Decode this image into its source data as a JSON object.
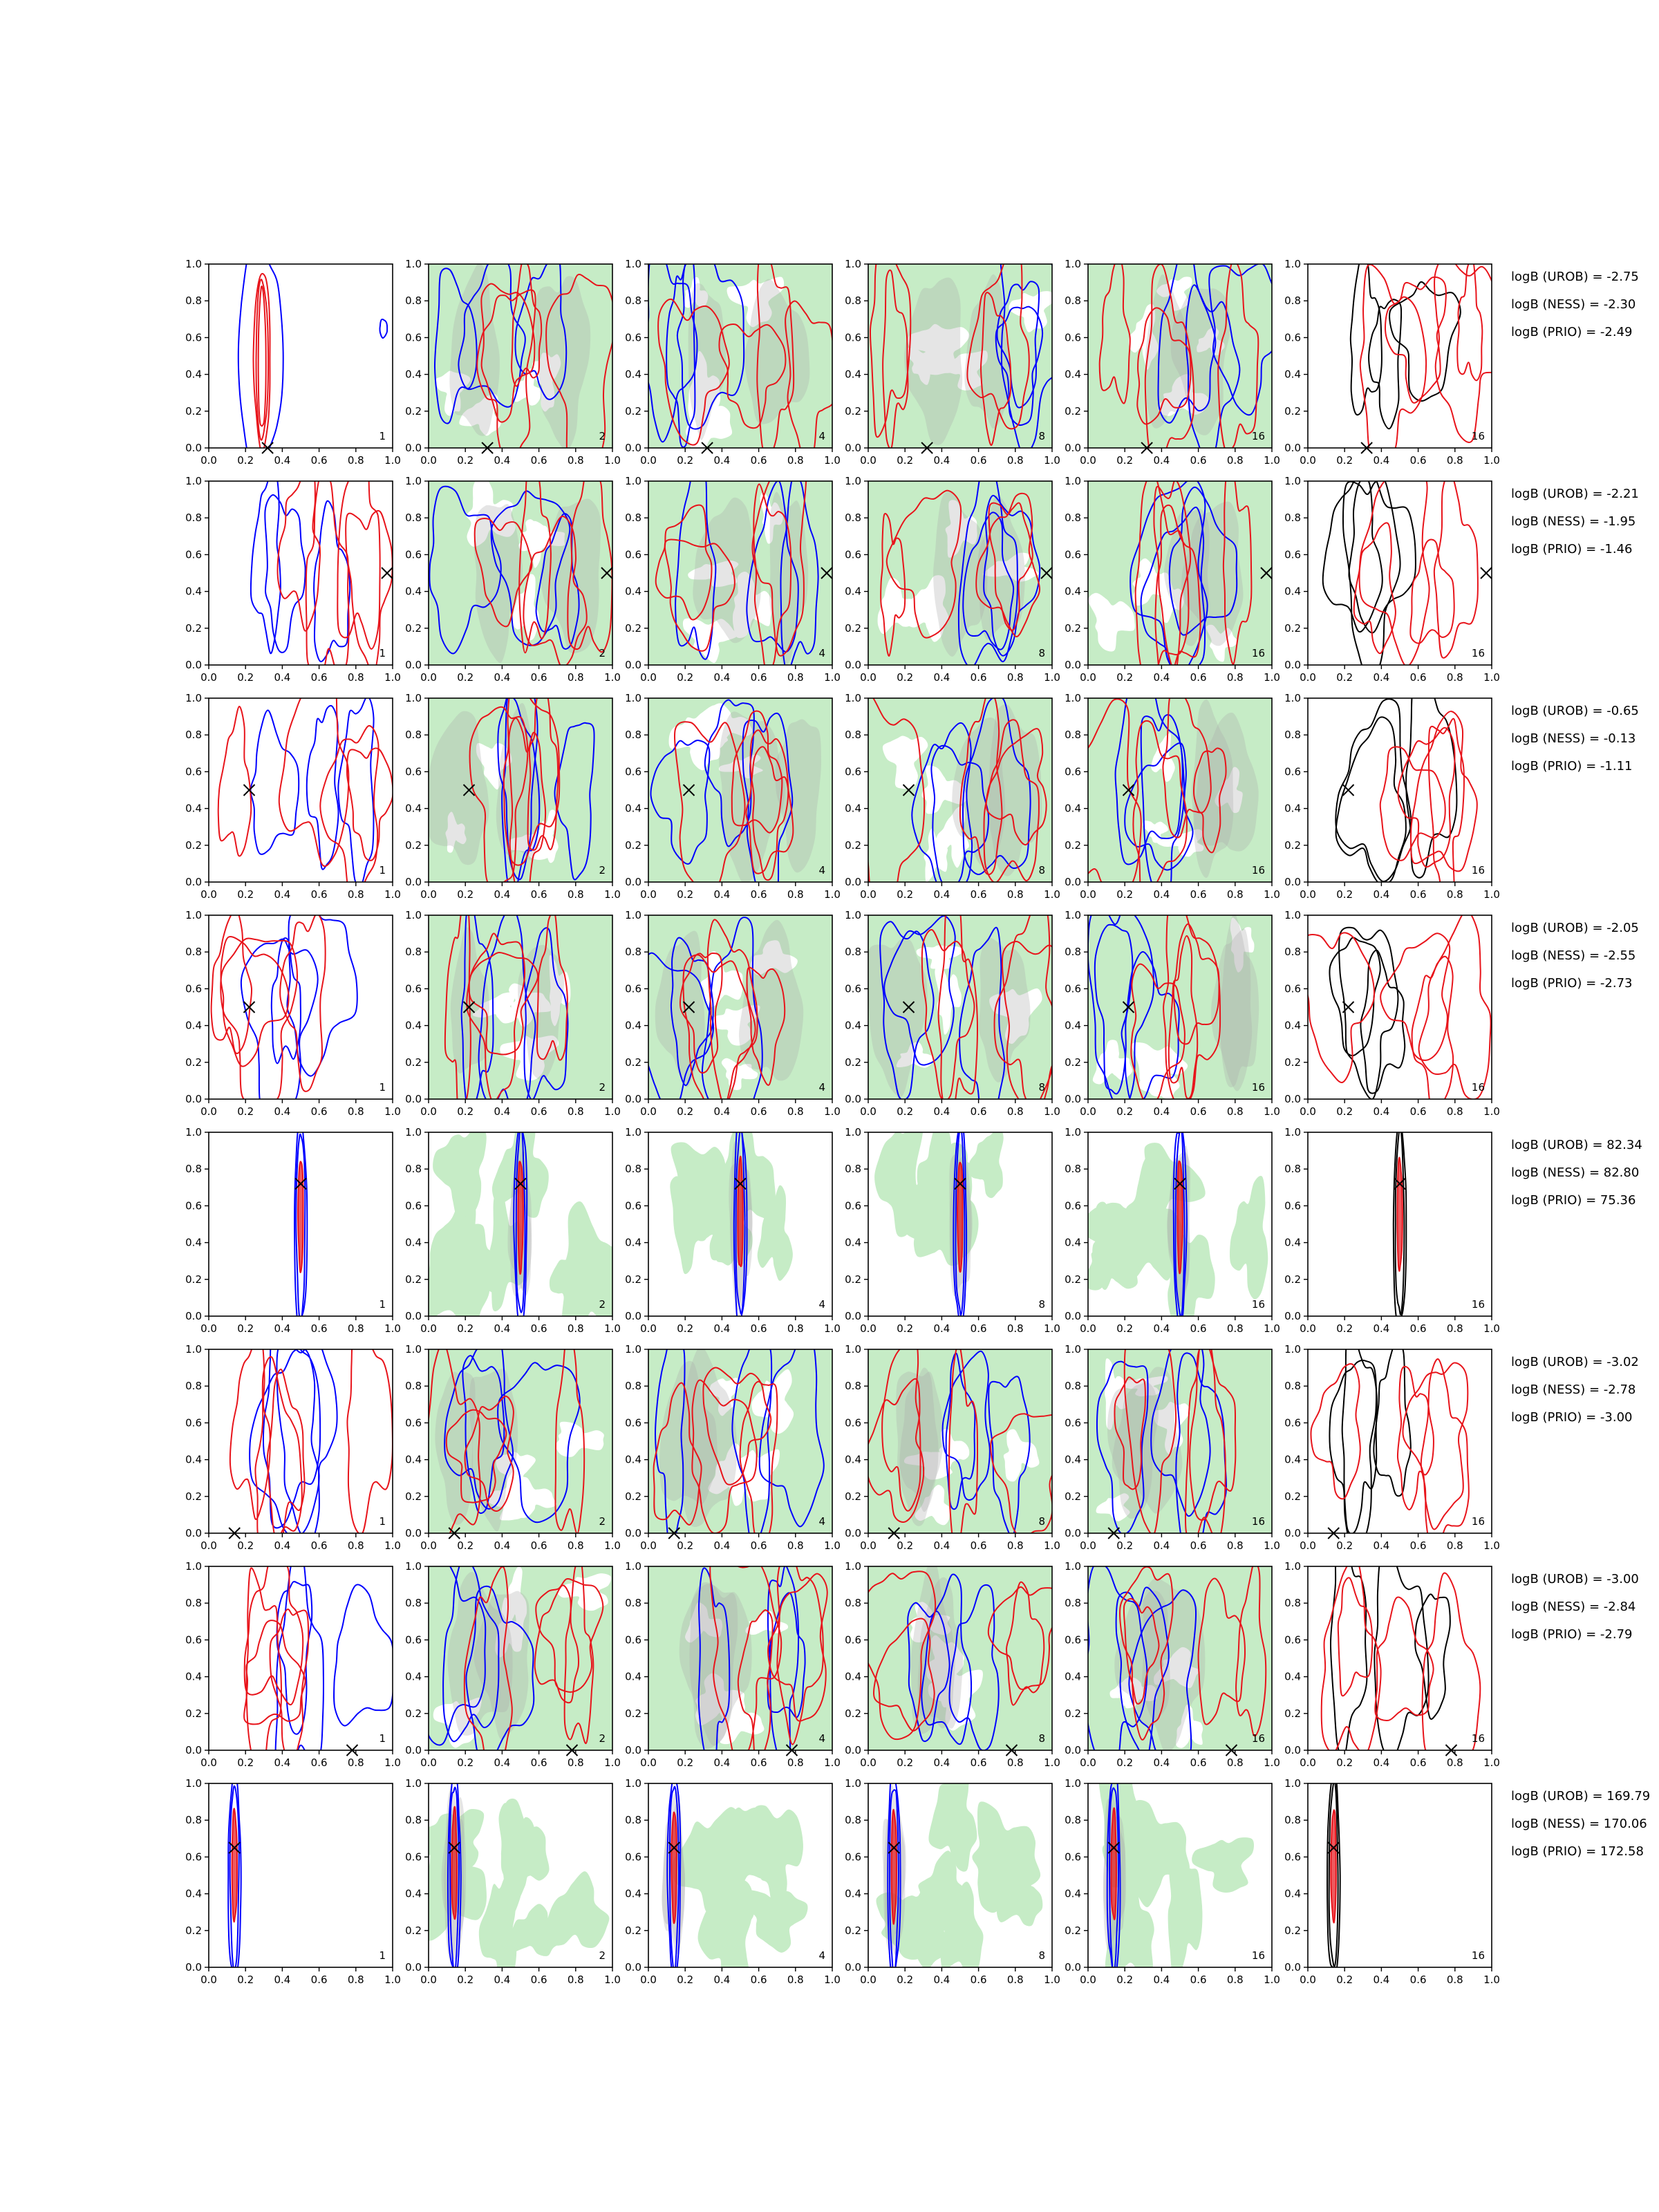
{
  "chart_data": {
    "type": "contour-grid",
    "rows": 8,
    "cols": 6,
    "xlim": [
      0.0,
      1.0
    ],
    "ylim": [
      0.0,
      1.0
    ],
    "x_ticks": [
      "0.0",
      "0.2",
      "0.4",
      "0.6",
      "0.8",
      "1.0"
    ],
    "y_ticks": [
      "0.0",
      "0.2",
      "0.4",
      "0.6",
      "0.8",
      "1.0"
    ],
    "panel_labels": [
      "1",
      "2",
      "4",
      "8",
      "16",
      "16"
    ],
    "panel_fill": [
      "none",
      "green",
      "green",
      "green",
      "green",
      "none"
    ],
    "colors": {
      "blue": "#0000ff",
      "red": "#e8141b",
      "black": "#000000",
      "fill_green": "#c6ecc6",
      "fill_gray": "#aaaaaa",
      "frame": "#000000"
    },
    "logB_lines": [
      [
        "logB (UROB) = -2.75",
        "logB (NESS) = -2.30",
        "logB (PRIO) = -2.49"
      ],
      [
        "logB (UROB) = -2.21",
        "logB (NESS) = -1.95",
        "logB (PRIO) = -1.46"
      ],
      [
        "logB (UROB) = -0.65",
        "logB (NESS) = -0.13",
        "logB (PRIO) = -1.11"
      ],
      [
        "logB (UROB) = -2.05",
        "logB (NESS) = -2.55",
        "logB (PRIO) = -2.73"
      ],
      [
        "logB (UROB) = 82.34",
        "logB (NESS) = 82.80",
        "logB (PRIO) = 75.36"
      ],
      [
        "logB (UROB) = -3.02",
        "logB (NESS) = -2.78",
        "logB (PRIO) = -3.00"
      ],
      [
        "logB (UROB) = -3.00",
        "logB (NESS) = -2.84",
        "logB (PRIO) = -2.79"
      ],
      [
        "logB (UROB) = 169.79",
        "logB (NESS) = 170.06",
        "logB (PRIO) = 172.58"
      ]
    ],
    "markers": [
      {
        "x": 0.32,
        "y": 0.0
      },
      {
        "x": 0.97,
        "y": 0.5
      },
      {
        "x": 0.22,
        "y": 0.5
      },
      {
        "x": 0.22,
        "y": 0.5
      },
      {
        "x": 0.5,
        "y": 0.72
      },
      {
        "x": 0.14,
        "y": 0.0
      },
      {
        "x": 0.78,
        "y": 0.0
      },
      {
        "x": 0.14,
        "y": 0.65
      }
    ],
    "row_style": [
      "narrow",
      "broad",
      "broad",
      "broad",
      "narrow",
      "broad",
      "broad",
      "narrow"
    ]
  }
}
